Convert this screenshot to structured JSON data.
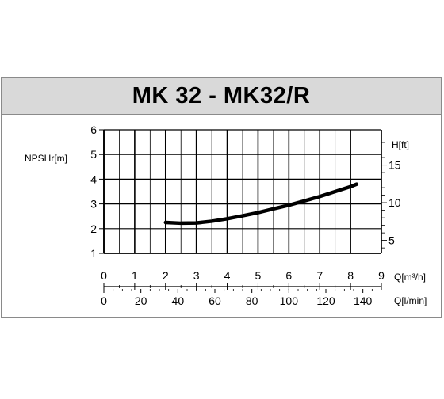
{
  "chart_data": {
    "type": "line",
    "title": "MK 32 - MK32/R",
    "ylabel_left": "NPSHr[m]",
    "ylabel_right": "H[ft]",
    "xlabel_top": "Q[m³/h]",
    "xlabel_bottom": "Q[l/min]",
    "ylim": [
      1,
      6
    ],
    "yticks": [
      "1",
      "2",
      "3",
      "4",
      "5",
      "6"
    ],
    "yticks_right": [
      "5",
      "10",
      "15"
    ],
    "yticks_right_values": [
      5,
      10,
      15
    ],
    "xlim": [
      0,
      9
    ],
    "xticks": [
      "0",
      "1",
      "2",
      "3",
      "4",
      "5",
      "6",
      "7",
      "8",
      "9"
    ],
    "xticks_lpm": [
      "0",
      "20",
      "40",
      "60",
      "80",
      "100",
      "120",
      "140"
    ],
    "xticks_lpm_values": [
      0,
      20,
      40,
      60,
      80,
      100,
      120,
      140
    ],
    "grid": true,
    "series": [
      {
        "x": [
          2.0,
          2.5,
          3.0,
          3.5,
          4.0,
          4.5,
          5.0,
          5.5,
          6.0,
          6.5,
          7.0,
          7.5,
          8.0,
          8.2
        ],
        "y": [
          2.25,
          2.22,
          2.23,
          2.3,
          2.4,
          2.52,
          2.65,
          2.8,
          2.95,
          3.12,
          3.3,
          3.5,
          3.7,
          3.8
        ]
      }
    ]
  }
}
